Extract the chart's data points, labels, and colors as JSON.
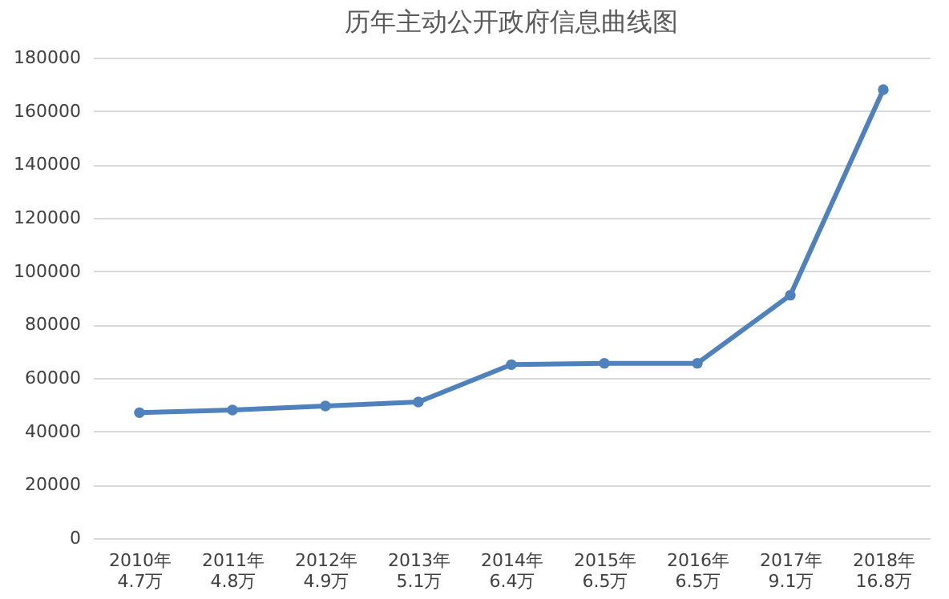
{
  "chart_data": {
    "type": "line",
    "title": "历年主动公开政府信息曲线图",
    "categories": [
      "2010年\n4.7万",
      "2011年\n4.8万",
      "2012年\n4.9万",
      "2013年\n5.1万",
      "2014年\n6.4万",
      "2015年\n6.5万",
      "2016年\n6.5万",
      "2017年\n9.1万",
      "2018年\n16.8万"
    ],
    "series": [
      {
        "color": "#4f81bd",
        "values": [
          47000,
          48000,
          49500,
          51000,
          65000,
          65500,
          65500,
          91000,
          168000
        ]
      }
    ],
    "ylim": [
      0,
      180000
    ],
    "yticks": [
      0,
      20000,
      40000,
      60000,
      80000,
      100000,
      120000,
      140000,
      160000,
      180000
    ],
    "grid": "y",
    "marker": "circle",
    "line_style": "solid",
    "legend": false
  }
}
